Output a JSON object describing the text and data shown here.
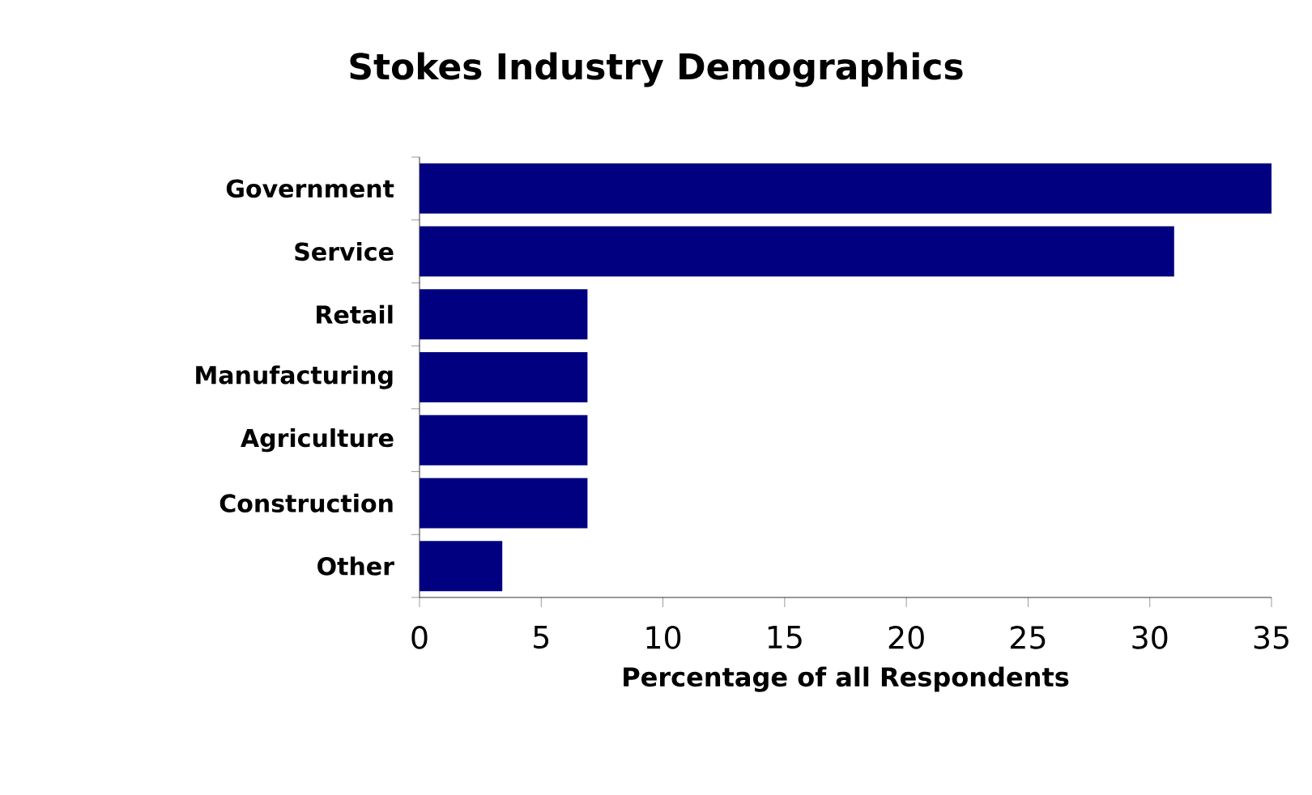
{
  "chart_data": {
    "type": "bar",
    "orientation": "horizontal",
    "title": "Stokes Industry Demographics",
    "xlabel": "Percentage of all Respondents",
    "categories": [
      "Government",
      "Service",
      "Retail",
      "Manufacturing",
      "Agriculture",
      "Construction",
      "Other"
    ],
    "values": [
      35,
      31,
      6.9,
      6.9,
      6.9,
      6.9,
      3.4
    ],
    "color": "#000080",
    "xlim": [
      0,
      35
    ],
    "xticks": [
      0,
      5,
      10,
      15,
      20,
      25,
      30,
      35
    ],
    "grid": false
  }
}
